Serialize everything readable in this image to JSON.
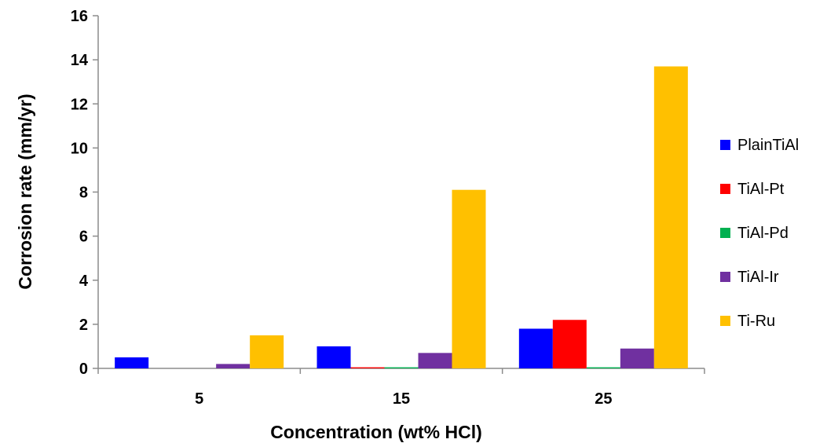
{
  "chart_data": {
    "type": "bar",
    "title": "",
    "xlabel": "Concentration (wt% HCl)",
    "ylabel": "Corrosion rate (mm/yr)",
    "categories": [
      "5",
      "15",
      "25"
    ],
    "ylim": [
      0,
      16
    ],
    "yticks": [
      0,
      2,
      4,
      6,
      8,
      10,
      12,
      14,
      16
    ],
    "grid": false,
    "legend_position": "right",
    "series": [
      {
        "name": "PlainTiAl",
        "color": "#0000ff",
        "values": [
          0.5,
          1.0,
          1.8
        ]
      },
      {
        "name": "TiAl-Pt",
        "color": "#ff0000",
        "values": [
          0.0,
          0.05,
          2.2
        ]
      },
      {
        "name": "TiAl-Pd",
        "color": "#00b050",
        "values": [
          0.0,
          0.05,
          0.05
        ]
      },
      {
        "name": "TiAl-Ir",
        "color": "#7030a0",
        "values": [
          0.2,
          0.7,
          0.9
        ]
      },
      {
        "name": "Ti-Ru",
        "color": "#ffc000",
        "values": [
          1.5,
          8.1,
          13.7
        ]
      }
    ]
  }
}
